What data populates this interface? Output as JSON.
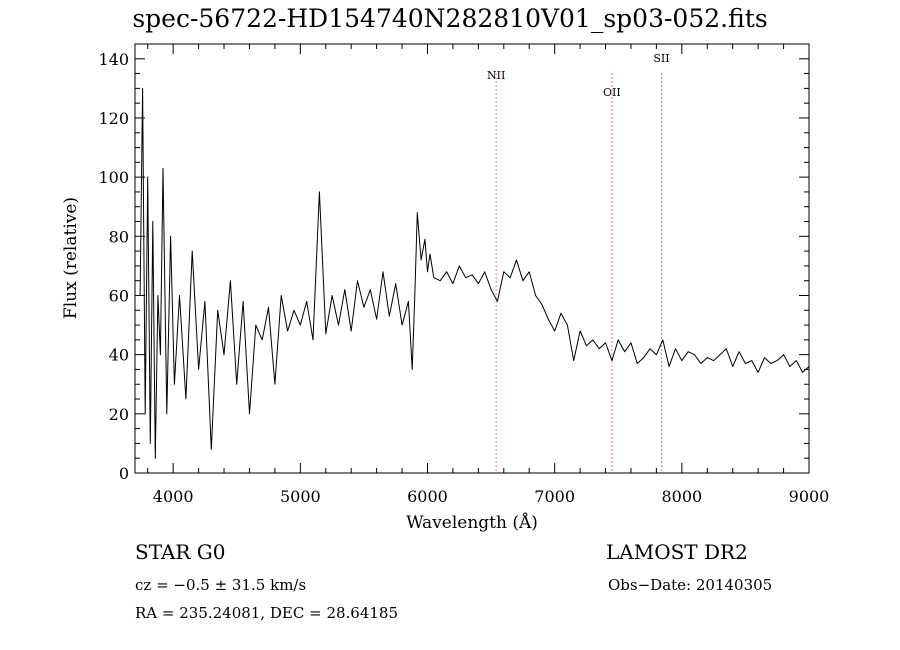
{
  "chart_data": {
    "type": "line",
    "title": "spec-56722-HD154740N282810V01_sp03-052.fits",
    "xlabel": "Wavelength (Å)",
    "ylabel": "Flux (relative)",
    "xlim": [
      3700,
      9000
    ],
    "ylim": [
      0,
      145
    ],
    "xticks": [
      4000,
      5000,
      6000,
      7000,
      8000,
      9000
    ],
    "yticks": [
      0,
      20,
      40,
      60,
      80,
      100,
      120,
      140
    ],
    "line_color": "#000000",
    "series": [
      {
        "x": [
          3740,
          3760,
          3780,
          3800,
          3820,
          3840,
          3860,
          3880,
          3900,
          3920,
          3950,
          3980,
          4010,
          4050,
          4100,
          4150,
          4200,
          4250,
          4300,
          4350,
          4400,
          4450,
          4500,
          4550,
          4600,
          4650,
          4700,
          4750,
          4800,
          4850,
          4900,
          4950,
          5000,
          5050,
          5100,
          5150,
          5200,
          5250,
          5300,
          5350,
          5400,
          5450,
          5500,
          5550,
          5600,
          5650,
          5700,
          5750,
          5800,
          5850,
          5880,
          5900,
          5920,
          5950,
          5980,
          6000,
          6020,
          6050,
          6100,
          6150,
          6200,
          6250,
          6300,
          6350,
          6400,
          6450,
          6500,
          6550,
          6600,
          6650,
          6700,
          6750,
          6800,
          6850,
          6900,
          6950,
          7000,
          7050,
          7100,
          7150,
          7200,
          7250,
          7300,
          7350,
          7400,
          7450,
          7500,
          7550,
          7600,
          7650,
          7700,
          7750,
          7800,
          7850,
          7900,
          7950,
          8000,
          8050,
          8100,
          8150,
          8200,
          8250,
          8300,
          8350,
          8400,
          8450,
          8500,
          8550,
          8600,
          8650,
          8700,
          8750,
          8800,
          8850,
          8900,
          8950,
          9000
        ],
        "y": [
          60,
          130,
          20,
          100,
          10,
          85,
          5,
          60,
          40,
          103,
          20,
          80,
          30,
          60,
          25,
          75,
          35,
          58,
          8,
          55,
          40,
          65,
          30,
          58,
          20,
          50,
          45,
          56,
          30,
          60,
          48,
          55,
          50,
          58,
          45,
          95,
          47,
          60,
          50,
          62,
          48,
          65,
          56,
          62,
          52,
          68,
          53,
          64,
          50,
          58,
          35,
          60,
          88,
          72,
          79,
          68,
          74,
          66,
          65,
          68,
          64,
          70,
          66,
          67,
          64,
          68,
          62,
          58,
          68,
          66,
          72,
          65,
          68,
          60,
          57,
          52,
          48,
          54,
          50,
          38,
          48,
          43,
          45,
          42,
          44,
          38,
          45,
          41,
          44,
          37,
          39,
          42,
          40,
          45,
          36,
          42,
          38,
          41,
          40,
          37,
          39,
          38,
          40,
          42,
          36,
          41,
          37,
          38,
          34,
          39,
          37,
          38,
          40,
          36,
          38,
          34,
          36
        ]
      }
    ],
    "lines": [
      {
        "label": "NII",
        "x": 6540,
        "color": "#cc3333"
      },
      {
        "label": "OII",
        "x": 7450,
        "color": "#cc3333"
      },
      {
        "label": "SII",
        "x": 7840,
        "color": "#555555"
      }
    ],
    "grid": false
  },
  "info": {
    "class": "STAR    G0",
    "survey": "LAMOST DR2",
    "cz": "cz = −0.5 ± 31.5 km/s",
    "obs_date": "Obs−Date: 20140305",
    "radec": "RA = 235.24081, DEC =  28.64185"
  }
}
